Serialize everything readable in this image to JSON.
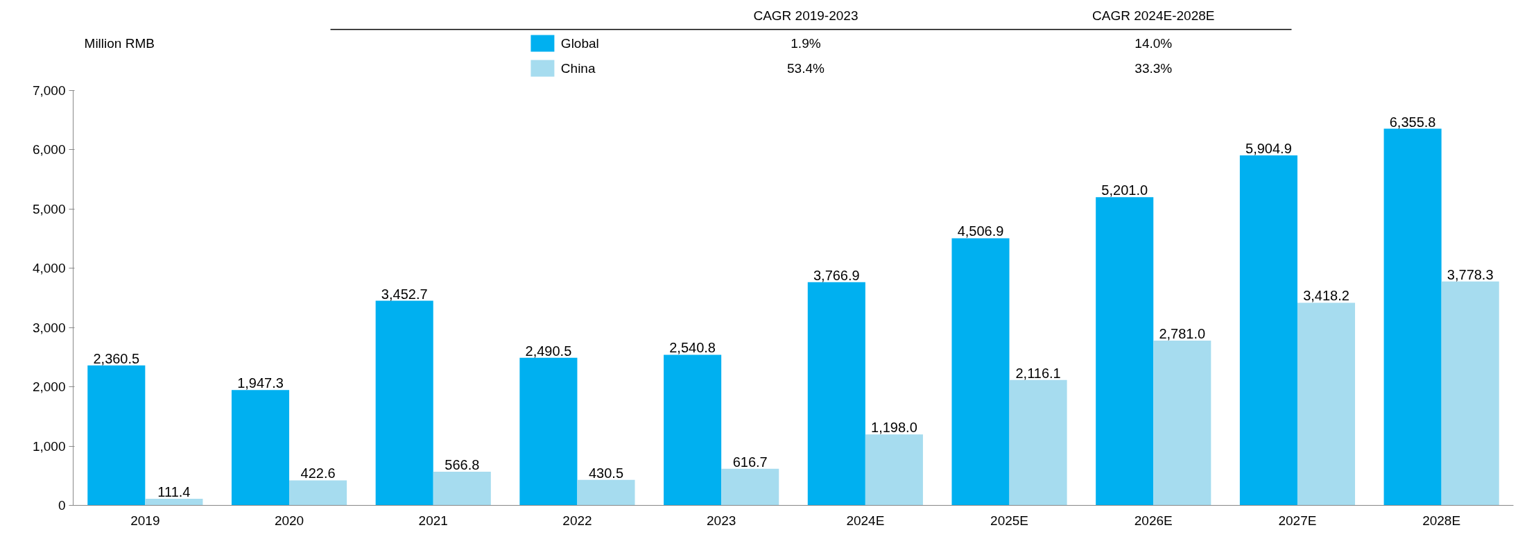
{
  "chart_data": {
    "type": "bar",
    "ylabel": "Million RMB",
    "categories": [
      "2019",
      "2020",
      "2021",
      "2022",
      "2023",
      "2024E",
      "2025E",
      "2026E",
      "2027E",
      "2028E"
    ],
    "series": [
      {
        "name": "Global",
        "color": "#00b0f0",
        "values": [
          2360.5,
          1947.3,
          3452.7,
          2490.5,
          2540.8,
          3766.9,
          4506.9,
          5201.0,
          5904.9,
          6355.8
        ],
        "value_labels": [
          "2,360.5",
          "1,947.3",
          "3,452.7",
          "2,490.5",
          "2,540.8",
          "3,766.9",
          "4,506.9",
          "5,201.0",
          "5,904.9",
          "6,355.8"
        ]
      },
      {
        "name": "China",
        "color": "#a6dcef",
        "values": [
          111.4,
          422.6,
          566.8,
          430.5,
          616.7,
          1198.0,
          2116.1,
          2781.0,
          3418.2,
          3778.3
        ],
        "value_labels": [
          "111.4",
          "422.6",
          "566.8",
          "430.5",
          "616.7",
          "1,198.0",
          "2,116.1",
          "2,781.0",
          "3,418.2",
          "3,778.3"
        ]
      }
    ],
    "ylim": [
      0,
      7000
    ],
    "yticks": [
      {
        "value": 0,
        "label": "0"
      },
      {
        "value": 1000,
        "label": "1,000"
      },
      {
        "value": 2000,
        "label": "2,000"
      },
      {
        "value": 3000,
        "label": "3,000"
      },
      {
        "value": 4000,
        "label": "4,000"
      },
      {
        "value": 5000,
        "label": "5,000"
      },
      {
        "value": 6000,
        "label": "6,000"
      },
      {
        "value": 7000,
        "label": "7,000"
      }
    ],
    "grid": false,
    "legend": "top",
    "annotations": [
      "CAGR 2019-2023",
      "CAGR 2024E-2028E",
      "1.9%",
      "14.0%",
      "53.4%",
      "33.3%"
    ]
  }
}
